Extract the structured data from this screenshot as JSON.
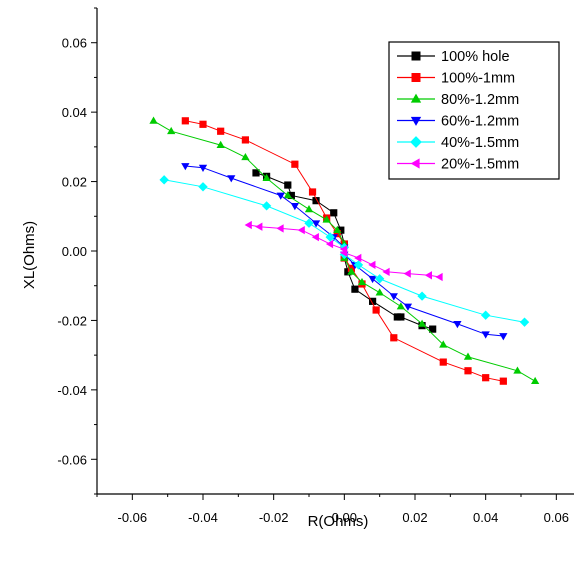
{
  "chart_data": {
    "type": "scatter",
    "xlabel": "R(Ohms)",
    "ylabel": "XL(Ohms)",
    "xlim": [
      -0.07,
      0.065
    ],
    "ylim": [
      -0.07,
      0.07
    ],
    "xticks": [
      -0.06,
      -0.04,
      -0.02,
      0.0,
      0.02,
      0.04,
      0.06
    ],
    "yticks": [
      -0.06,
      -0.04,
      -0.02,
      0.0,
      0.02,
      0.04,
      0.06
    ],
    "xtick_labels": [
      "-0.06",
      "-0.04",
      "-0.02",
      "0.00",
      "0.02",
      "0.04",
      "0.06"
    ],
    "ytick_labels": [
      "-0.06",
      "-0.04",
      "-0.02",
      "0.00",
      "0.02",
      "0.04",
      "0.06"
    ],
    "grid": false,
    "legend_position": "top-right",
    "series": [
      {
        "name": "100% hole",
        "color": "#000000",
        "marker": "square",
        "upper": [
          [
            -0.025,
            0.0225
          ],
          [
            -0.022,
            0.0215
          ],
          [
            -0.016,
            0.019
          ],
          [
            -0.015,
            0.016
          ],
          [
            -0.008,
            0.0145
          ],
          [
            -0.003,
            0.011
          ],
          [
            -0.001,
            0.006
          ],
          [
            0.0,
            0.002
          ]
        ],
        "lower": [
          [
            0.0,
            -0.002
          ],
          [
            0.001,
            -0.006
          ],
          [
            0.003,
            -0.011
          ],
          [
            0.008,
            -0.0145
          ],
          [
            0.015,
            -0.019
          ],
          [
            0.016,
            -0.019
          ],
          [
            0.022,
            -0.0215
          ],
          [
            0.025,
            -0.0225
          ]
        ]
      },
      {
        "name": "100%-1mm",
        "color": "#ff0000",
        "marker": "square",
        "upper": [
          [
            -0.045,
            0.0375
          ],
          [
            -0.04,
            0.0365
          ],
          [
            -0.035,
            0.0345
          ],
          [
            -0.028,
            0.032
          ],
          [
            -0.014,
            0.025
          ],
          [
            -0.009,
            0.017
          ],
          [
            -0.005,
            0.0095
          ],
          [
            -0.002,
            0.005
          ],
          [
            0.0,
            0.002
          ]
        ],
        "lower": [
          [
            0.0,
            -0.002
          ],
          [
            0.002,
            -0.005
          ],
          [
            0.005,
            -0.0095
          ],
          [
            0.009,
            -0.017
          ],
          [
            0.014,
            -0.025
          ],
          [
            0.028,
            -0.032
          ],
          [
            0.035,
            -0.0345
          ],
          [
            0.04,
            -0.0365
          ],
          [
            0.045,
            -0.0375
          ]
        ]
      },
      {
        "name": "80%-1.2mm",
        "color": "#00cc00",
        "marker": "triangle-up",
        "upper": [
          [
            -0.054,
            0.0375
          ],
          [
            -0.049,
            0.0345
          ],
          [
            -0.035,
            0.0305
          ],
          [
            -0.028,
            0.027
          ],
          [
            -0.022,
            0.021
          ],
          [
            -0.016,
            0.016
          ],
          [
            -0.01,
            0.012
          ],
          [
            -0.005,
            0.009
          ],
          [
            -0.002,
            0.006
          ],
          [
            0.0,
            0.002
          ]
        ],
        "lower": [
          [
            0.0,
            -0.002
          ],
          [
            0.002,
            -0.006
          ],
          [
            0.005,
            -0.009
          ],
          [
            0.01,
            -0.012
          ],
          [
            0.016,
            -0.016
          ],
          [
            0.022,
            -0.021
          ],
          [
            0.028,
            -0.027
          ],
          [
            0.035,
            -0.0305
          ],
          [
            0.049,
            -0.0345
          ],
          [
            0.054,
            -0.0375
          ]
        ]
      },
      {
        "name": "60%-1.2mm",
        "color": "#0000ff",
        "marker": "triangle-down",
        "upper": [
          [
            -0.045,
            0.0245
          ],
          [
            -0.04,
            0.024
          ],
          [
            -0.032,
            0.021
          ],
          [
            -0.018,
            0.016
          ],
          [
            -0.014,
            0.013
          ],
          [
            -0.008,
            0.008
          ],
          [
            -0.003,
            0.004
          ],
          [
            0.0,
            0.001
          ]
        ],
        "lower": [
          [
            0.0,
            -0.001
          ],
          [
            0.003,
            -0.004
          ],
          [
            0.008,
            -0.008
          ],
          [
            0.014,
            -0.013
          ],
          [
            0.018,
            -0.016
          ],
          [
            0.032,
            -0.021
          ],
          [
            0.04,
            -0.024
          ],
          [
            0.045,
            -0.0245
          ]
        ]
      },
      {
        "name": "40%-1.5mm",
        "color": "#00ffff",
        "marker": "diamond",
        "upper": [
          [
            -0.051,
            0.0205
          ],
          [
            -0.04,
            0.0185
          ],
          [
            -0.022,
            0.013
          ],
          [
            -0.01,
            0.008
          ],
          [
            -0.004,
            0.004
          ],
          [
            0.0,
            0.001
          ]
        ],
        "lower": [
          [
            0.0,
            -0.001
          ],
          [
            0.004,
            -0.004
          ],
          [
            0.01,
            -0.008
          ],
          [
            0.022,
            -0.013
          ],
          [
            0.04,
            -0.0185
          ],
          [
            0.051,
            -0.0205
          ]
        ]
      },
      {
        "name": "20%-1.5mm",
        "color": "#ff00ff",
        "marker": "triangle-left",
        "upper": [
          [
            -0.027,
            0.0075
          ],
          [
            -0.024,
            0.007
          ],
          [
            -0.018,
            0.0065
          ],
          [
            -0.012,
            0.006
          ],
          [
            -0.008,
            0.004
          ],
          [
            -0.004,
            0.002
          ],
          [
            0.0,
            0.0005
          ]
        ],
        "lower": [
          [
            0.0,
            -0.0005
          ],
          [
            0.004,
            -0.002
          ],
          [
            0.008,
            -0.004
          ],
          [
            0.012,
            -0.006
          ],
          [
            0.018,
            -0.0065
          ],
          [
            0.024,
            -0.007
          ],
          [
            0.027,
            -0.0075
          ]
        ]
      }
    ]
  }
}
